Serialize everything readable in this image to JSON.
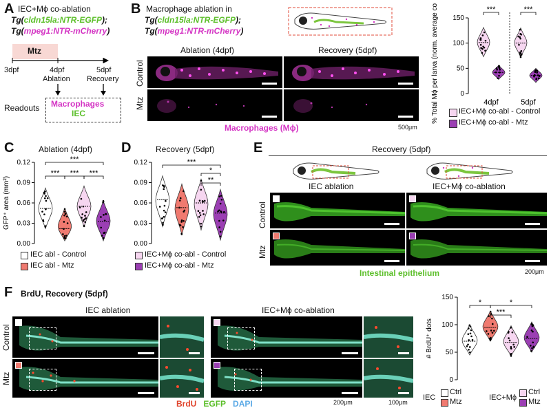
{
  "panels": {
    "a": {
      "letter": "A",
      "title": "IEC+Mϕ co-ablation",
      "line1": "Tg(cldn15la:NTR-EGFP);",
      "line1_colored": "cldn15la:NTR-EGFP",
      "line2_colored": "mpeg1:NTR-mCherry",
      "drug": "Mtz",
      "t3": "3dpf",
      "t4": "4dpf",
      "t5": "5dpf",
      "ablation": "Ablation",
      "recovery": "Recovery",
      "readouts": "Readouts",
      "r1": "Macrophages",
      "r2": "IEC"
    },
    "b": {
      "letter": "B",
      "title": "Macrophage ablation in",
      "col1": "Ablation (4dpf)",
      "col2": "Recovery (5dpf)",
      "row1": "Control",
      "row2": "Mtz",
      "caption": "Macrophages (Mϕ)",
      "scale": "500μm"
    },
    "c": {
      "letter": "C",
      "title": "Ablation (4dpf)",
      "ylabel": "GFP⁺ area (mm²)",
      "legend": [
        "IEC abl - Control",
        "IEC abl - Mtz"
      ]
    },
    "d": {
      "letter": "D",
      "title": "Recovery (5dpf)",
      "legend": [
        "IEC+Mϕ co-abl - Control",
        "IEC+Mϕ co-abl - Mtz"
      ]
    },
    "e": {
      "letter": "E",
      "title": "Recovery (5dpf)",
      "col1": "IEC ablation",
      "col2": "IEC+Mϕ co-ablation",
      "row1": "Control",
      "row2": "Mtz",
      "caption": "Intestinal epithelium",
      "scale": "200μm"
    },
    "f": {
      "letter": "F",
      "title": "BrdU, Recovery (5dpf)",
      "col1": "IEC ablation",
      "col2": "IEC+Mϕ co-ablation",
      "row1": "Control",
      "row2": "Mtz",
      "brdu": "BrdU",
      "egfp": "EGFP",
      "dapi": "DAPI",
      "scale1": "200μm",
      "scale2": "100μm",
      "legend_iec": "IEC",
      "legend_iecm": "IEC+Mϕ",
      "ctrl": "Ctrl",
      "mtz": "Mtz"
    }
  },
  "colors": {
    "magenta": "#d435c4",
    "green": "#5cbf2a",
    "salmon": "#f07a70",
    "pink": "#f6d6f0",
    "purple": "#9b3fb3",
    "white": "#ffffff"
  },
  "chart_data": [
    {
      "type": "violin",
      "panel": "B",
      "ylabel": "% Total Mϕ per larva (norm. average control)",
      "ylim": [
        0,
        150
      ],
      "yticks": [
        0,
        50,
        100,
        150
      ],
      "categories": [
        "4dpf",
        "5dpf"
      ],
      "series": [
        {
          "name": "IEC+Mϕ co-abl - Control",
          "medians": [
            101,
            100
          ]
        },
        {
          "name": "IEC+Mϕ co-abl - Mtz",
          "medians": [
            42,
            36
          ]
        }
      ],
      "annotations": [
        "***",
        "***"
      ]
    },
    {
      "type": "violin",
      "panel": "C",
      "ylabel": "GFP⁺ area (mm²)",
      "ylim": [
        0,
        0.12
      ],
      "yticks": [
        "0.00",
        "0.03",
        "0.06",
        "0.09",
        "0.12"
      ],
      "categories": [
        "IEC abl - Control",
        "IEC abl - Mtz",
        "IEC+Mϕ co-abl - Control",
        "IEC+Mϕ co-abl - Mtz"
      ],
      "medians": [
        0.052,
        0.022,
        0.055,
        0.033
      ],
      "annotations": [
        "***",
        "***",
        "***",
        "***"
      ]
    },
    {
      "type": "violin",
      "panel": "D",
      "ylabel": "",
      "ylim": [
        0,
        0.12
      ],
      "yticks": [
        "0.00",
        "0.03",
        "0.06",
        "0.09",
        "0.12"
      ],
      "categories": [
        "IEC abl - Control",
        "IEC abl - Mtz",
        "IEC+Mϕ co-abl - Control",
        "IEC+Mϕ co-abl - Mtz"
      ],
      "medians": [
        0.065,
        0.053,
        0.06,
        0.045
      ],
      "annotations": [
        "***",
        "*",
        "**"
      ]
    },
    {
      "type": "violin",
      "panel": "F",
      "ylabel": "# BrdU⁺ dots",
      "ylim": [
        0,
        150
      ],
      "yticks": [
        0,
        50,
        100,
        150
      ],
      "categories": [
        "IEC Ctrl",
        "IEC Mtz",
        "IEC+Mϕ Ctrl",
        "IEC+Mϕ Mtz"
      ],
      "medians": [
        70,
        95,
        68,
        75
      ],
      "annotations": [
        "*",
        "*",
        "***"
      ]
    }
  ]
}
